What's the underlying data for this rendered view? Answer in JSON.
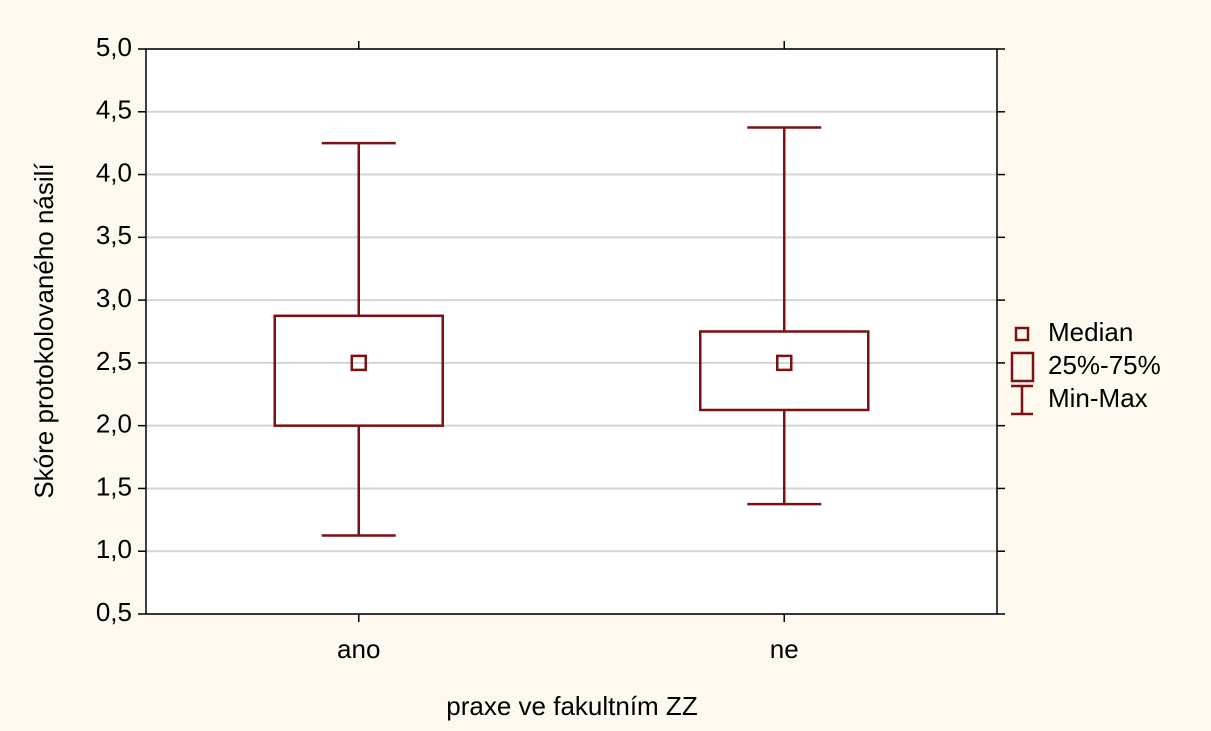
{
  "chart_data": {
    "type": "box",
    "x_label": "praxe ve fakultním ZZ",
    "y_label": "Skóre protokolovaného násilí",
    "categories": [
      "ano",
      "ne"
    ],
    "min": [
      1.125,
      1.375
    ],
    "q1": [
      2.0,
      2.125
    ],
    "median": [
      2.5,
      2.5
    ],
    "q3": [
      2.875,
      2.75
    ],
    "max": [
      4.25,
      4.375
    ],
    "color": "#7b1113",
    "ylim": [
      0.5,
      5.0
    ],
    "yticks": [
      {
        "value": 0.5,
        "label": "0,5"
      },
      {
        "value": 1.0,
        "label": "1,0"
      },
      {
        "value": 1.5,
        "label": "1,5"
      },
      {
        "value": 2.0,
        "label": "2,0"
      },
      {
        "value": 2.5,
        "label": "2,5"
      },
      {
        "value": 3.0,
        "label": "3,0"
      },
      {
        "value": 3.5,
        "label": "3,5"
      },
      {
        "value": 4.0,
        "label": "4,0"
      },
      {
        "value": 4.5,
        "label": "4,5"
      },
      {
        "value": 5.0,
        "label": "5,0"
      }
    ],
    "grid": true,
    "legend": {
      "position": "right",
      "entries": [
        "Median",
        "25%-75%",
        "Min-Max"
      ]
    }
  }
}
